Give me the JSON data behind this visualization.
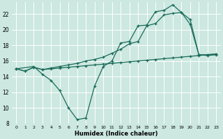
{
  "background_color": "#cce8e0",
  "grid_color": "#ffffff",
  "line_color": "#1a6b5a",
  "xlabel": "Humidex (Indice chaleur)",
  "xlim": [
    -0.5,
    23.5
  ],
  "ylim": [
    8,
    23.5
  ],
  "yticks": [
    8,
    10,
    12,
    14,
    16,
    18,
    20,
    22
  ],
  "xticks": [
    0,
    1,
    2,
    3,
    4,
    5,
    6,
    7,
    8,
    9,
    10,
    11,
    12,
    13,
    14,
    15,
    16,
    17,
    18,
    19,
    20,
    21,
    22,
    23
  ],
  "series": {
    "line1_x": [
      0,
      2,
      3,
      4,
      5,
      6,
      7,
      8,
      9,
      10,
      11,
      12,
      13,
      14,
      15,
      16,
      17,
      18,
      19,
      20,
      21,
      22,
      23
    ],
    "line1_y": [
      15.0,
      15.3,
      14.3,
      13.5,
      12.2,
      10.0,
      8.5,
      8.7,
      12.8,
      15.3,
      16.0,
      18.3,
      18.5,
      20.5,
      20.6,
      22.3,
      22.5,
      23.2,
      22.2,
      21.3,
      16.8,
      16.7,
      16.8
    ],
    "line2_x": [
      0,
      1,
      2,
      3,
      4,
      5,
      6,
      7,
      8,
      9,
      10,
      11,
      12,
      13,
      14,
      15,
      16,
      17,
      18,
      19,
      20,
      21,
      22,
      23
    ],
    "line2_y": [
      15.0,
      14.7,
      15.2,
      14.9,
      15.0,
      15.1,
      15.2,
      15.3,
      15.4,
      15.5,
      15.6,
      15.7,
      15.8,
      15.9,
      16.0,
      16.1,
      16.2,
      16.3,
      16.4,
      16.5,
      16.6,
      16.7,
      16.8,
      16.9
    ],
    "line3_x": [
      0,
      1,
      2,
      3,
      4,
      5,
      6,
      7,
      8,
      9,
      10,
      11,
      12,
      13,
      14,
      15,
      16,
      17,
      18,
      19,
      20,
      21,
      22,
      23
    ],
    "line3_y": [
      15.0,
      14.7,
      15.2,
      14.9,
      15.1,
      15.3,
      15.5,
      15.7,
      16.0,
      16.2,
      16.5,
      17.0,
      17.5,
      18.2,
      18.5,
      20.5,
      20.8,
      21.9,
      22.1,
      22.2,
      20.7,
      16.8,
      16.8,
      16.9
    ]
  }
}
